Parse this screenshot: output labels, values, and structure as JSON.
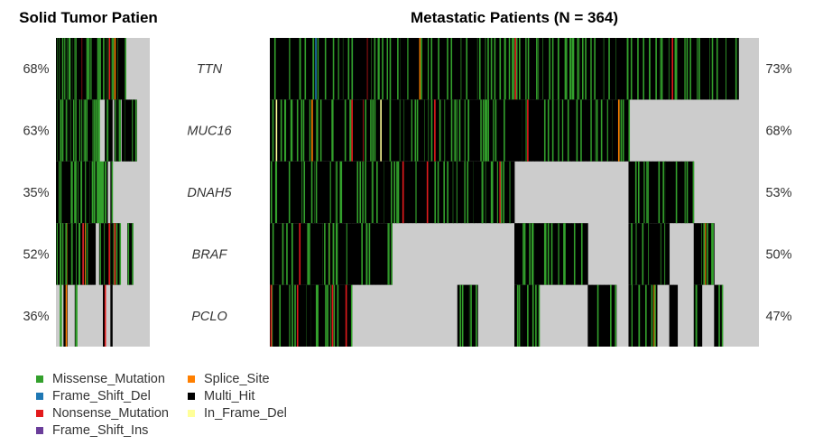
{
  "chart_data": {
    "type": "heatmap",
    "colors": {
      "Missense_Mutation": "#33a02c",
      "Frame_Shift_Del": "#1f78b4",
      "Nonsense_Mutation": "#e31a1c",
      "Frame_Shift_Ins": "#6a3d9a",
      "Splice_Site": "#ff7f00",
      "Multi_Hit": "#000000",
      "In_Frame_Del": "#ffff99",
      "None": "#cccccc"
    },
    "panels": [
      {
        "title": "Solid Tumor Patien",
        "genes": [
          "TTN",
          "MUC16",
          "DNAH5",
          "BRAF",
          "PCLO"
        ],
        "frequencies": [
          "68%",
          "63%",
          "35%",
          "52%",
          "36%"
        ],
        "columns": [
          "MMMMN",
          "MMMMN",
          "MMMGG",
          "MMMMN",
          "MMMMM",
          "MMMGM",
          "MMMMN",
          "MMMMN",
          "MMGMN",
          "MMMMN",
          "MMGMM",
          "MMMMN",
          "MMMGN",
          "MMMMN",
          "MMMMN",
          "MMMMN",
          "MMMMN",
          "MMMMN",
          "MMMMN",
          "MMMMN",
          "MMGMN",
          "MMMNN",
          "MMGNN",
          "MNGMN",
          "MNGMN",
          "MNGMM",
          "MMGMN",
          "MMNMN",
          "MMNMN",
          "MMMMM",
          "MNNMN",
          "MMNMN",
          "MMNMN",
          "MMNMN",
          "MNNNN",
          "MMNNN",
          "MMNNN",
          "NMNNN",
          "NMNMN",
          "NMNMN",
          "NMNMN",
          "NMNNN",
          "NMNNN",
          "NNNNN",
          "NNNNN",
          "NNNNN",
          "NNNNN",
          "NNNNN",
          "NNNNN",
          "NNNNN"
        ]
      },
      {
        "title": "Metastatic Patients (N = 364)",
        "genes": [
          "TTN",
          "MUC16",
          "DNAH5",
          "BRAF",
          "PCLO"
        ],
        "frequencies": [
          "73%",
          "68%",
          "53%",
          "50%",
          "47%"
        ],
        "columns": [
          "MMMMM",
          "MMMMM",
          "MMMMM",
          "MMMMM",
          "MMMMM",
          "MMMMM",
          "MMMMM",
          "MMMMM",
          "MMMMM",
          "MMMMM",
          "MMMMM",
          "MMMMM",
          "MMMMM",
          "MMMMM",
          "MMMMM",
          "MMMMM",
          "MMMMM",
          "MMMMM",
          "MMMMM",
          "MMMMM",
          "MMMMN",
          "MMMMN",
          "MMMMN",
          "MMMMN",
          "MMMMN",
          "MMMMN",
          "MMMMN",
          "MMMMN",
          "MMMMN",
          "MMMMN",
          "MMMNN",
          "MMMNN",
          "MMMNN",
          "MMMNN",
          "MMMNN",
          "MMMNN",
          "MMMNN",
          "MMMNN",
          "MMMNN",
          "MMMNN",
          "MMMNN",
          "MMMNN",
          "MMMNN",
          "MMMNN",
          "MMMNN",
          "MMMNN",
          "MMMNM",
          "MMMNM",
          "MMMNM",
          "MMMNM",
          "MMMNM",
          "MMMNN",
          "MMMNN",
          "MMMNN",
          "MMMNN",
          "MMMNN",
          "MMMNN",
          "MMMNN",
          "MMMNN",
          "MMMNN",
          "MMNMM",
          "MMNMM",
          "MMNMM",
          "MMNMM",
          "MMNMM",
          "MMNMM",
          "MMNMN",
          "MMNMN",
          "MMNMN",
          "MMNMN",
          "MMNMN",
          "MMNMN",
          "MMNMN",
          "MMNMN",
          "MMNMN",
          "MMNMN",
          "MMNMN",
          "MMNMN",
          "MMNNM",
          "MMNNM",
          "MMNNM",
          "MMNNM",
          "MMNNM",
          "MMNNM",
          "MMNNM",
          "MMNNN",
          "MMNNN",
          "MMNNN",
          "MNMMM",
          "MNMMM",
          "MNMMM",
          "MNMMM",
          "MNMMM",
          "MNMMM",
          "MNMMM",
          "MNMMN",
          "MNMMN",
          "MNMMN",
          "MNMNM",
          "MNMNM",
          "MNMNN",
          "MNMNN",
          "MNMNN",
          "MNMNN",
          "MNNMM",
          "MNNMM",
          "MNNMN",
          "MNNMN",
          "MNNMN",
          "MNNNM",
          "MNNNM",
          "MNNNN",
          "MNNNN",
          "MNNNN",
          "MNNNN",
          "NNNNN",
          "NNNNN",
          "NNNNN",
          "NNNNN",
          "NNNNN"
        ]
      }
    ],
    "legend": [
      {
        "label": "Missense_Mutation",
        "color": "#33a02c"
      },
      {
        "label": "Splice_Site",
        "color": "#ff7f00"
      },
      {
        "label": "Frame_Shift_Del",
        "color": "#1f78b4"
      },
      {
        "label": "Multi_Hit",
        "color": "#000000"
      },
      {
        "label": "Nonsense_Mutation",
        "color": "#e31a1c"
      },
      {
        "label": "In_Frame_Del",
        "color": "#ffff99"
      },
      {
        "label": "Frame_Shift_Ins",
        "color": "#6a3d9a"
      }
    ]
  }
}
